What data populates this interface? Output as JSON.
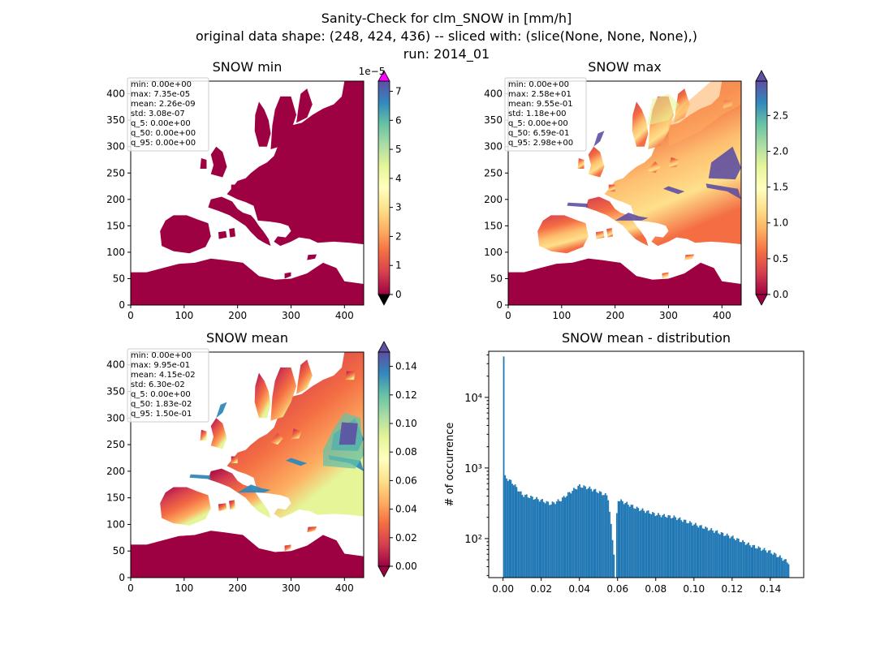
{
  "figure": {
    "title_lines": [
      "Sanity-Check for clm_SNOW in [mm/h]",
      "original data shape: (248, 424, 436) -- sliced with: (slice(None, None, None),)",
      "run: 2014_01"
    ]
  },
  "chart_data": [
    {
      "type": "heatmap",
      "title": "SNOW min",
      "xticks": [
        "0",
        "100",
        "200",
        "300",
        "400"
      ],
      "yticks": [
        "0",
        "50",
        "100",
        "150",
        "200",
        "250",
        "300",
        "350",
        "400"
      ],
      "xlim": [
        0,
        436
      ],
      "ylim": [
        0,
        424
      ],
      "colorbar": {
        "ticks": [
          "0",
          "1",
          "2",
          "3",
          "4",
          "5",
          "6",
          "7"
        ],
        "range": [
          0,
          7.35
        ],
        "offset_text": "1e−5",
        "over_color": "#ff00ff",
        "under_color": "#000000",
        "extend": "both"
      },
      "stats": [
        "min: 0.00e+00",
        "max: 7.35e-05",
        "mean: 2.26e-09",
        "std: 3.08e-07",
        "q_5: 0.00e+00",
        "q_50: 0.00e+00",
        "q_95: 0.00e+00"
      ]
    },
    {
      "type": "heatmap",
      "title": "SNOW max",
      "xticks": [
        "0",
        "100",
        "200",
        "300",
        "400"
      ],
      "yticks": [
        "0",
        "50",
        "100",
        "150",
        "200",
        "250",
        "300",
        "350",
        "400"
      ],
      "xlim": [
        0,
        436
      ],
      "ylim": [
        0,
        424
      ],
      "colorbar": {
        "ticks": [
          "0.0",
          "0.5",
          "1.0",
          "1.5",
          "2.0",
          "2.5"
        ],
        "range": [
          0,
          2.98
        ],
        "offset_text": "",
        "over_color": "#5e4fa2",
        "under_color": "#9e0142",
        "extend": "both"
      },
      "stats": [
        "min: 0.00e+00",
        "max: 2.58e+01",
        "mean: 9.55e-01",
        "std: 1.18e+00",
        "q_5: 0.00e+00",
        "q_50: 6.59e-01",
        "q_95: 2.98e+00"
      ]
    },
    {
      "type": "heatmap",
      "title": "SNOW mean",
      "xticks": [
        "0",
        "100",
        "200",
        "300",
        "400"
      ],
      "yticks": [
        "0",
        "50",
        "100",
        "150",
        "200",
        "250",
        "300",
        "350",
        "400"
      ],
      "xlim": [
        0,
        436
      ],
      "ylim": [
        0,
        424
      ],
      "colorbar": {
        "ticks": [
          "0.00",
          "0.02",
          "0.04",
          "0.06",
          "0.08",
          "0.10",
          "0.12",
          "0.14"
        ],
        "range": [
          0,
          0.15
        ],
        "offset_text": "",
        "over_color": "#5e4fa2",
        "under_color": "#9e0142",
        "extend": "both"
      },
      "stats": [
        "min: 0.00e+00",
        "max: 9.95e-01",
        "mean: 4.15e-02",
        "std: 6.30e-02",
        "q_5: 0.00e+00",
        "q_50: 1.83e-02",
        "q_95: 1.50e-01"
      ]
    },
    {
      "type": "bar",
      "title": "SNOW mean - distribution",
      "xlabel": "",
      "ylabel": "# of occurrence",
      "yscale": "log",
      "xlim": [
        -0.0075,
        0.1575
      ],
      "ylim": [
        28,
        45000
      ],
      "xticks": [
        "0.00",
        "0.02",
        "0.04",
        "0.06",
        "0.08",
        "0.10",
        "0.12",
        "0.14"
      ],
      "yticks": [
        "10²",
        "10³",
        "10⁴"
      ],
      "bar_color": "#1f77b4",
      "x": [
        0.0,
        0.001,
        0.005,
        0.01,
        0.02,
        0.025,
        0.03,
        0.035,
        0.04,
        0.045,
        0.05,
        0.055,
        0.0585,
        0.06,
        0.07,
        0.08,
        0.09,
        0.1,
        0.11,
        0.12,
        0.13,
        0.14,
        0.145,
        0.15
      ],
      "values": [
        38000,
        750,
        620,
        420,
        350,
        310,
        350,
        450,
        560,
        520,
        460,
        400,
        50,
        360,
        270,
        220,
        200,
        160,
        130,
        105,
        80,
        65,
        55,
        45
      ]
    }
  ]
}
